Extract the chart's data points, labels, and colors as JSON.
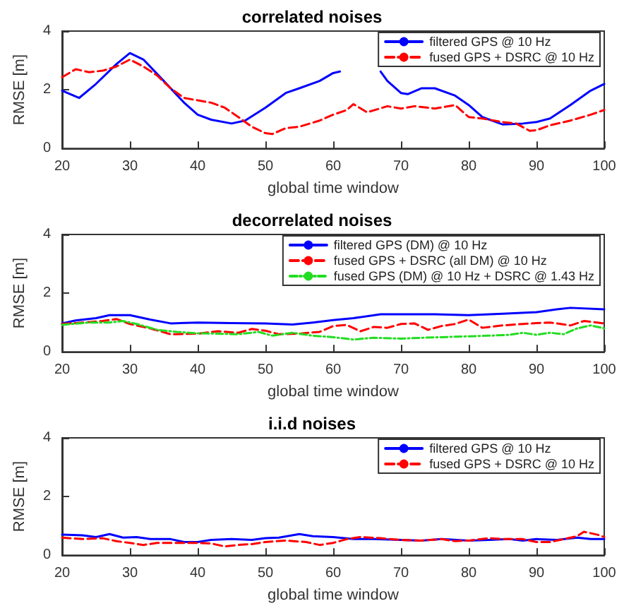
{
  "chart_data": [
    {
      "type": "line",
      "title": "correlated noises",
      "xlabel": "global time window",
      "ylabel": "RMSE [m]",
      "xlim": [
        20,
        100
      ],
      "ylim": [
        0,
        4
      ],
      "xticks": [
        20,
        30,
        40,
        50,
        60,
        70,
        80,
        90,
        100
      ],
      "yticks": [
        0,
        2,
        4
      ],
      "legend": "top right",
      "marker": "none",
      "series": [
        {
          "name": "filtered GPS @ 10 Hz",
          "color": "#0000ff",
          "line_style": "solid",
          "x": [
            20,
            22.5,
            25,
            28,
            30,
            32,
            35,
            38,
            40,
            42,
            45,
            47,
            50,
            53,
            55,
            58,
            60,
            61,
            62,
            66,
            67,
            68,
            70,
            71,
            73,
            75,
            78,
            80,
            82,
            85,
            88,
            90,
            92,
            95,
            98,
            100
          ],
          "values": [
            1.97,
            1.72,
            2.2,
            2.87,
            3.25,
            3.03,
            2.3,
            1.56,
            1.15,
            0.98,
            0.85,
            0.95,
            1.39,
            1.89,
            2.05,
            2.3,
            2.57,
            2.62,
            null,
            null,
            2.62,
            2.3,
            1.89,
            1.85,
            2.05,
            2.05,
            1.8,
            1.48,
            1.07,
            0.82,
            0.85,
            0.9,
            1.02,
            1.48,
            1.97,
            2.2
          ]
        },
        {
          "name": "fused GPS + DSRC @ 10 Hz",
          "color": "#ff0000",
          "line_style": "dashed",
          "x": [
            20,
            22,
            24,
            26,
            28,
            30,
            32,
            34,
            36,
            38,
            40,
            42,
            44,
            46,
            48,
            50,
            51,
            53,
            55,
            58,
            60,
            62,
            63,
            65,
            68,
            70,
            72,
            75,
            78,
            80,
            82,
            85,
            87,
            89,
            90,
            92,
            95,
            98,
            100
          ],
          "values": [
            2.43,
            2.7,
            2.6,
            2.65,
            2.79,
            3.03,
            2.79,
            2.49,
            2.05,
            1.72,
            1.64,
            1.56,
            1.39,
            1.07,
            0.74,
            0.52,
            0.49,
            0.69,
            0.74,
            0.95,
            1.15,
            1.31,
            1.51,
            1.23,
            1.44,
            1.36,
            1.44,
            1.36,
            1.48,
            1.07,
            1.02,
            0.9,
            0.85,
            0.6,
            0.62,
            0.79,
            0.95,
            1.15,
            1.31
          ]
        }
      ]
    },
    {
      "type": "line",
      "title": "decorrelated noises",
      "xlabel": "global time window",
      "ylabel": "RMSE [m]",
      "xlim": [
        20,
        100
      ],
      "ylim": [
        0,
        4
      ],
      "xticks": [
        20,
        30,
        40,
        50,
        60,
        70,
        80,
        90,
        100
      ],
      "yticks": [
        0,
        2,
        4
      ],
      "legend": "top right",
      "marker": "none",
      "series": [
        {
          "name": "filtered GPS (DM) @ 10 Hz",
          "color": "#0000ff",
          "line_style": "solid",
          "x": [
            20,
            22,
            25,
            27,
            30,
            33,
            36,
            40,
            45,
            50,
            54,
            57,
            60,
            63,
            67,
            70,
            75,
            80,
            85,
            90,
            93,
            95,
            100
          ],
          "values": [
            0.97,
            1.07,
            1.15,
            1.25,
            1.25,
            1.1,
            0.97,
            1.0,
            0.98,
            0.97,
            0.93,
            1.0,
            1.08,
            1.15,
            1.28,
            1.28,
            1.28,
            1.25,
            1.3,
            1.35,
            1.45,
            1.5,
            1.45
          ]
        },
        {
          "name": "fused GPS + DSRC (all DM) @ 10 Hz",
          "color": "#ff0000",
          "line_style": "dashed",
          "x": [
            20,
            23,
            26,
            28,
            30,
            33,
            36,
            40,
            43,
            46,
            48,
            50,
            52,
            55,
            58,
            60,
            62,
            64,
            66,
            68,
            70,
            72,
            74,
            76,
            78,
            80,
            82,
            85,
            88,
            90,
            92,
            95,
            97,
            100
          ],
          "values": [
            0.95,
            1.0,
            1.05,
            1.12,
            0.95,
            0.8,
            0.6,
            0.62,
            0.7,
            0.65,
            0.78,
            0.72,
            0.6,
            0.62,
            0.68,
            0.88,
            0.92,
            0.7,
            0.85,
            0.82,
            0.95,
            0.97,
            0.75,
            0.88,
            0.95,
            1.1,
            0.82,
            0.9,
            0.95,
            0.98,
            1.0,
            0.9,
            1.05,
            0.97
          ]
        },
        {
          "name": "fused GPS (DM) @ 10 Hz + DSRC @ 1.43 Hz",
          "color": "#22dd22",
          "line_style": "dotted",
          "x": [
            20,
            24,
            27,
            29,
            31,
            34,
            37,
            40,
            43,
            46,
            49,
            51,
            54,
            57,
            60,
            63,
            66,
            70,
            73,
            76,
            80,
            83,
            86,
            88,
            90,
            92,
            94,
            96,
            98,
            100
          ],
          "values": [
            0.92,
            1.0,
            1.0,
            1.05,
            0.95,
            0.75,
            0.68,
            0.63,
            0.62,
            0.6,
            0.68,
            0.55,
            0.65,
            0.55,
            0.5,
            0.42,
            0.48,
            0.45,
            0.48,
            0.5,
            0.53,
            0.55,
            0.58,
            0.65,
            0.58,
            0.65,
            0.6,
            0.8,
            0.9,
            0.8
          ]
        }
      ]
    },
    {
      "type": "line",
      "title": "i.i.d noises",
      "xlabel": "global time window",
      "ylabel": "RMSE [m]",
      "xlim": [
        20,
        100
      ],
      "ylim": [
        0,
        4
      ],
      "xticks": [
        20,
        30,
        40,
        50,
        60,
        70,
        80,
        90,
        100
      ],
      "yticks": [
        0,
        2,
        4
      ],
      "legend": "top right",
      "marker": "none",
      "series": [
        {
          "name": "filtered GPS @ 10 Hz",
          "color": "#0000ff",
          "line_style": "solid",
          "x": [
            20,
            23,
            25,
            27,
            29,
            31,
            33,
            36,
            38,
            40,
            42,
            45,
            48,
            50,
            52,
            55,
            57,
            60,
            63,
            66,
            70,
            73,
            76,
            80,
            83,
            86,
            88,
            90,
            93,
            96,
            98,
            100
          ],
          "values": [
            0.7,
            0.68,
            0.62,
            0.72,
            0.6,
            0.62,
            0.55,
            0.55,
            0.45,
            0.45,
            0.52,
            0.55,
            0.52,
            0.58,
            0.6,
            0.72,
            0.65,
            0.62,
            0.55,
            0.55,
            0.52,
            0.5,
            0.55,
            0.5,
            0.52,
            0.55,
            0.5,
            0.55,
            0.52,
            0.6,
            0.55,
            0.55
          ]
        },
        {
          "name": "fused GPS + DSRC @ 10 Hz",
          "color": "#ff0000",
          "line_style": "dashed",
          "x": [
            20,
            23,
            26,
            28,
            30,
            32,
            34,
            37,
            40,
            42,
            44,
            46,
            48,
            50,
            53,
            56,
            58,
            60,
            62,
            64,
            67,
            70,
            73,
            76,
            78,
            80,
            83,
            85,
            88,
            90,
            92,
            94,
            96,
            97,
            99,
            100
          ],
          "values": [
            0.6,
            0.55,
            0.58,
            0.48,
            0.42,
            0.35,
            0.42,
            0.42,
            0.42,
            0.4,
            0.3,
            0.35,
            0.38,
            0.45,
            0.5,
            0.45,
            0.35,
            0.42,
            0.55,
            0.62,
            0.58,
            0.52,
            0.5,
            0.55,
            0.48,
            0.5,
            0.58,
            0.55,
            0.55,
            0.45,
            0.45,
            0.55,
            0.65,
            0.8,
            0.7,
            0.62
          ]
        }
      ]
    }
  ]
}
